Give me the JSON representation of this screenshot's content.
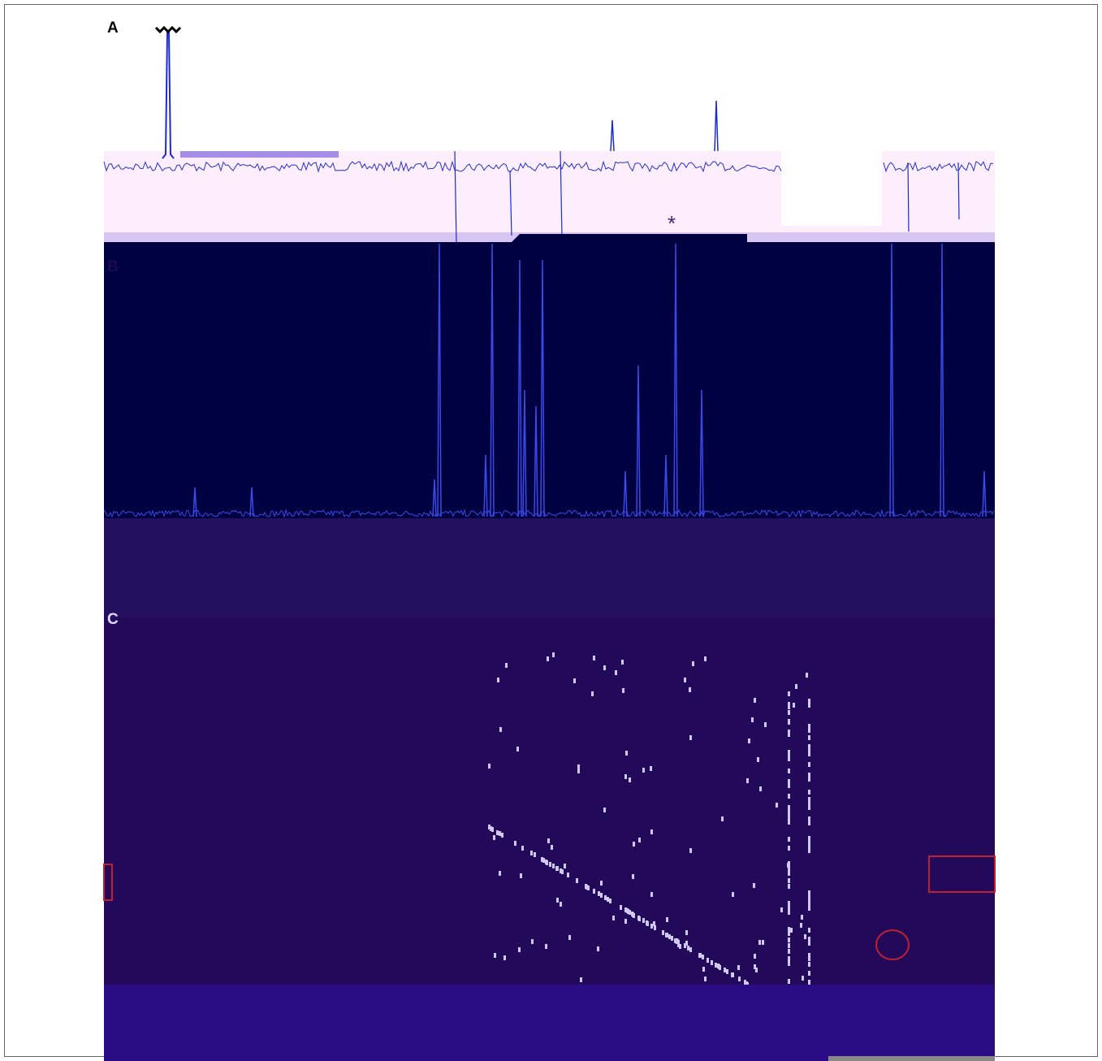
{
  "panels": [
    {
      "label": "A"
    },
    {
      "label": "B"
    },
    {
      "label": "C"
    }
  ],
  "annotation": "*"
}
